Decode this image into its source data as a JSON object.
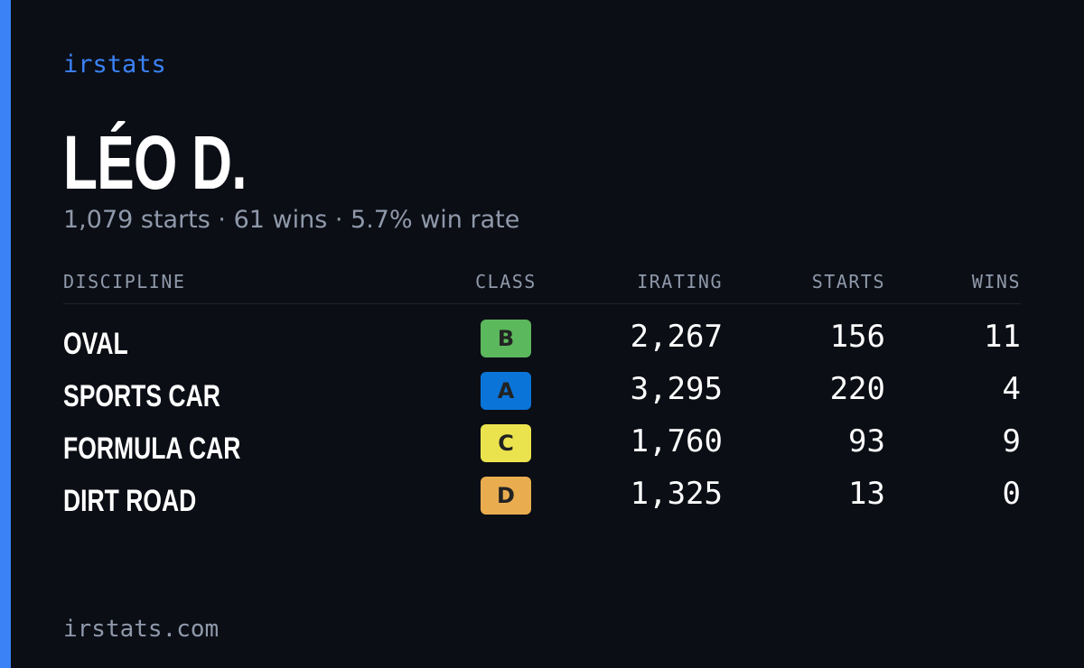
{
  "brand": "irstats",
  "name": "LÉO D.",
  "summary": "1,079 starts · 61 wins · 5.7% win rate",
  "table": {
    "headers": [
      "DISCIPLINE",
      "CLASS",
      "IRATING",
      "STARTS",
      "WINS"
    ],
    "rows": [
      {
        "discipline": "OVAL",
        "class": "B",
        "class_color": "#5cb85c",
        "irating": "2,267",
        "starts": "156",
        "wins": "11"
      },
      {
        "discipline": "SPORTS CAR",
        "class": "A",
        "class_color": "#0b74d9",
        "irating": "3,295",
        "starts": "220",
        "wins": "4"
      },
      {
        "discipline": "FORMULA CAR",
        "class": "C",
        "class_color": "#ebe34e",
        "irating": "1,760",
        "starts": "93",
        "wins": "9"
      },
      {
        "discipline": "DIRT ROAD",
        "class": "D",
        "class_color": "#e9ad50",
        "irating": "1,325",
        "starts": "13",
        "wins": "0"
      }
    ]
  },
  "footer": "irstats.com"
}
